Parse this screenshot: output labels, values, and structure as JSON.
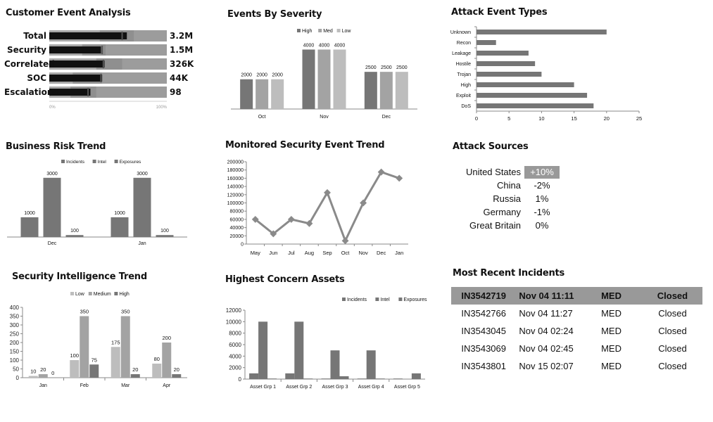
{
  "titles": {
    "customer_event_analysis": "Customer Event Analysis",
    "events_by_severity": "Events By Severity",
    "attack_event_types": "Attack Event Types",
    "business_risk_trend": "Business Risk Trend",
    "monitored_security_event_trend": "Monitored Security Event Trend",
    "attack_sources": "Attack Sources",
    "security_intelligence_trend": "Security Intelligence Trend",
    "highest_concern_assets": "Highest Concern Assets",
    "most_recent_incidents": "Most Recent Incidents"
  },
  "attack_sources": [
    {
      "country": "United States",
      "change": "+10%",
      "highlight": true
    },
    {
      "country": "China",
      "change": "-2%",
      "highlight": false
    },
    {
      "country": "Russia",
      "change": "1%",
      "highlight": false
    },
    {
      "country": "Germany",
      "change": "-1%",
      "highlight": false
    },
    {
      "country": "Great Britain",
      "change": "0%",
      "highlight": false
    }
  ],
  "incidents": {
    "rows": [
      [
        "IN3542719",
        "Nov 04 11:11",
        "MED",
        "Closed"
      ],
      [
        "IN3542766",
        "Nov 04 11:27",
        "MED",
        "Closed"
      ],
      [
        "IN3543045",
        "Nov 04 02:24",
        "MED",
        "Closed"
      ],
      [
        "IN3543069",
        "Nov 04 02:45",
        "MED",
        "Closed"
      ],
      [
        "IN3543801",
        "Nov 15 02:07",
        "MED",
        "Closed"
      ]
    ]
  },
  "colors": {
    "dark": "#767676",
    "mid": "#a3a3a3",
    "light": "#bdbdbd",
    "track": "#9e9e9e",
    "bullet_bar": "#111111"
  },
  "chart_data": [
    {
      "id": "customer_event_analysis",
      "type": "bar",
      "orientation": "horizontal-bullet",
      "categories": [
        "Total",
        "Security",
        "Correlated",
        "SOC",
        "Escalations"
      ],
      "value_labels": [
        "3.2M",
        "1.5M",
        "326K",
        "44K",
        "98"
      ],
      "values": [
        66,
        44,
        47,
        45,
        35
      ],
      "bands": [
        [
          0,
          43,
          72,
          100
        ],
        [
          0,
          28,
          48,
          100
        ],
        [
          0,
          40,
          62,
          100
        ],
        [
          0,
          20,
          45,
          100
        ],
        [
          0,
          18,
          40,
          100
        ]
      ],
      "targets": [
        62,
        45,
        46,
        44,
        33
      ],
      "xlim": [
        0,
        100
      ],
      "tick_labels": [
        "0%",
        "100%"
      ]
    },
    {
      "id": "events_by_severity",
      "type": "bar",
      "categories": [
        "Oct",
        "Nov",
        "Dec"
      ],
      "series": [
        {
          "name": "High",
          "values": [
            2000,
            4000,
            2500
          ]
        },
        {
          "name": "Med",
          "values": [
            2000,
            4000,
            2500
          ]
        },
        {
          "name": "Low",
          "values": [
            2000,
            4000,
            2500
          ]
        }
      ],
      "ylim": [
        0,
        4400
      ],
      "legend": "top"
    },
    {
      "id": "attack_event_types",
      "type": "bar",
      "orientation": "horizontal",
      "categories": [
        "Unknown",
        "Recon",
        "Leakage",
        "Hostile",
        "Trojan",
        "High",
        "Exploit",
        "DoS"
      ],
      "values": [
        20,
        3,
        8,
        9,
        10,
        15,
        17,
        18
      ],
      "xlim": [
        0,
        25
      ],
      "xticks": [
        0,
        5,
        10,
        15,
        20,
        25
      ]
    },
    {
      "id": "business_risk_trend",
      "type": "bar",
      "categories": [
        "Dec",
        "Jan"
      ],
      "series": [
        {
          "name": "Incidents",
          "values": [
            1000,
            1000
          ]
        },
        {
          "name": "Intel",
          "values": [
            3000,
            3000
          ]
        },
        {
          "name": "Exposures",
          "values": [
            100,
            100
          ]
        }
      ],
      "ylim": [
        0,
        3100
      ],
      "legend": "top"
    },
    {
      "id": "monitored_security_event_trend",
      "type": "line",
      "x": [
        "May",
        "Jun",
        "Jul",
        "Aug",
        "Sep",
        "Oct",
        "Nov",
        "Dec",
        "Jan"
      ],
      "values": [
        60000,
        25000,
        60000,
        50000,
        125000,
        8000,
        100000,
        175000,
        160000
      ],
      "ylim": [
        0,
        200000
      ],
      "yticks": [
        0,
        20000,
        40000,
        60000,
        80000,
        100000,
        120000,
        140000,
        160000,
        180000,
        200000
      ]
    },
    {
      "id": "security_intelligence_trend",
      "type": "bar",
      "categories": [
        "Jan",
        "Feb",
        "Mar",
        "Apr"
      ],
      "series": [
        {
          "name": "Low",
          "values": [
            10,
            100,
            175,
            80
          ]
        },
        {
          "name": "Medium",
          "values": [
            20,
            350,
            350,
            200
          ]
        },
        {
          "name": "High",
          "values": [
            0,
            75,
            20,
            20
          ]
        }
      ],
      "ylim": [
        0,
        400
      ],
      "yticks": [
        0,
        50,
        100,
        150,
        200,
        250,
        300,
        350,
        400
      ],
      "legend": "top"
    },
    {
      "id": "highest_concern_assets",
      "type": "bar",
      "categories": [
        "Asset Grp 1",
        "Asset Grp 2",
        "Asset Grp 3",
        "Asset Grp 4",
        "Asset Grp 5"
      ],
      "series": [
        {
          "name": "Incidents",
          "values": [
            1000,
            1000,
            100,
            100,
            100
          ]
        },
        {
          "name": "Intel",
          "values": [
            10000,
            10000,
            5000,
            5000,
            0
          ]
        },
        {
          "name": "Exposures",
          "values": [
            100,
            100,
            500,
            100,
            1000
          ]
        }
      ],
      "ylim": [
        0,
        12000
      ],
      "yticks": [
        0,
        2000,
        4000,
        6000,
        8000,
        10000,
        12000
      ],
      "legend": "top-right"
    }
  ]
}
